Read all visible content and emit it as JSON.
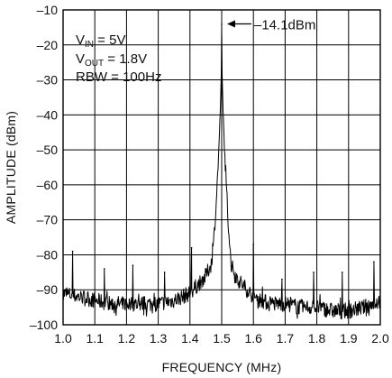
{
  "chart_data": {
    "type": "line",
    "title": "",
    "xlabel": "FREQUENCY (MHz)",
    "ylabel": "AMPLITUDE (dBm)",
    "xlim": [
      1.0,
      2.0
    ],
    "ylim": [
      -100,
      -10
    ],
    "grid": true,
    "x_ticks": [
      "1.0",
      "1.1",
      "1.2",
      "1.3",
      "1.4",
      "1.5",
      "1.6",
      "1.7",
      "1.8",
      "1.9",
      "2.0"
    ],
    "y_ticks": [
      "–10",
      "–20",
      "–30",
      "–40",
      "–50",
      "–60",
      "–70",
      "–80",
      "–90",
      "–100"
    ],
    "legend_box": {
      "lines": [
        {
          "main": "V",
          "sub": "IN",
          "rest": " = 5V"
        },
        {
          "main": "V",
          "sub": "OUT",
          "rest": " = 1.8V"
        },
        {
          "main": "RBW = 100Hz",
          "sub": "",
          "rest": ""
        }
      ]
    },
    "annotations": [
      {
        "text": "–14.1dBm",
        "x": 1.5,
        "y": -14.1
      }
    ],
    "noise_floor": [
      [
        1.0,
        -91
      ],
      [
        1.05,
        -92
      ],
      [
        1.1,
        -93
      ],
      [
        1.15,
        -94
      ],
      [
        1.2,
        -94
      ],
      [
        1.25,
        -94
      ],
      [
        1.3,
        -94
      ],
      [
        1.35,
        -93
      ],
      [
        1.4,
        -91
      ],
      [
        1.45,
        -86
      ],
      [
        1.48,
        -80
      ],
      [
        1.49,
        -76
      ],
      [
        1.5,
        -70
      ],
      [
        1.51,
        -76
      ],
      [
        1.52,
        -81
      ],
      [
        1.55,
        -87
      ],
      [
        1.6,
        -92
      ],
      [
        1.65,
        -94
      ],
      [
        1.7,
        -94
      ],
      [
        1.75,
        -95
      ],
      [
        1.8,
        -95
      ],
      [
        1.85,
        -96
      ],
      [
        1.9,
        -96
      ],
      [
        1.95,
        -95
      ],
      [
        2.0,
        -93
      ]
    ],
    "series": [
      {
        "values": [
          {
            "x": 1.03,
            "y": -79
          },
          {
            "x": 1.13,
            "y": -84
          },
          {
            "x": 1.22,
            "y": -83
          },
          {
            "x": 1.32,
            "y": -85
          },
          {
            "x": 1.405,
            "y": -78
          },
          {
            "x": 1.5,
            "y": -14.1
          },
          {
            "x": 1.6,
            "y": -77
          },
          {
            "x": 1.69,
            "y": -87
          },
          {
            "x": 1.79,
            "y": -85
          },
          {
            "x": 1.88,
            "y": -85
          },
          {
            "x": 1.98,
            "y": -82
          }
        ]
      }
    ]
  }
}
